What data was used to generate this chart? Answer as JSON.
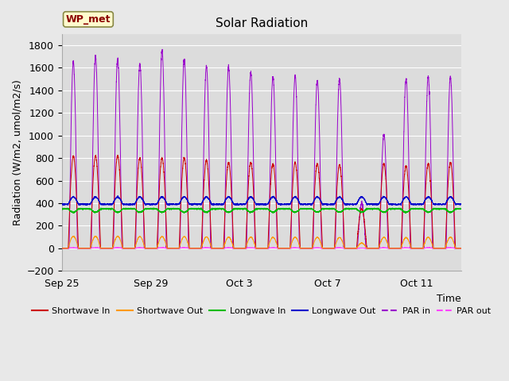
{
  "title": "Solar Radiation",
  "ylabel": "Radiation (W/m2, umol/m2/s)",
  "xlabel": "Time",
  "ylim": [
    -200,
    1900
  ],
  "yticks": [
    -200,
    0,
    200,
    400,
    600,
    800,
    1000,
    1200,
    1400,
    1600,
    1800
  ],
  "fig_bg_color": "#e8e8e8",
  "plot_bg_color": "#dcdcdc",
  "legend_label": "WP_met",
  "series": {
    "shortwave_in": {
      "label": "Shortwave In",
      "color": "#cc0000"
    },
    "shortwave_out": {
      "label": "Shortwave Out",
      "color": "#ff9900"
    },
    "longwave_in": {
      "label": "Longwave In",
      "color": "#00bb00"
    },
    "longwave_out": {
      "label": "Longwave Out",
      "color": "#0000cc"
    },
    "par_in": {
      "label": "PAR in",
      "color": "#9900cc"
    },
    "par_out": {
      "label": "PAR out",
      "color": "#ff44ff"
    }
  },
  "x_tick_positions": [
    0,
    4,
    8,
    12,
    16
  ],
  "x_tick_labels": [
    "Sep 25",
    "Sep 29",
    "Oct 3",
    "Oct 7",
    "Oct 11"
  ],
  "days": 18,
  "pts_per_day": 288,
  "title_fontsize": 11,
  "axis_label_fontsize": 9,
  "tick_fontsize": 9,
  "legend_fontsize": 8,
  "day_peaks_sw": [
    820,
    820,
    820,
    800,
    800,
    800,
    780,
    760,
    760,
    750,
    760,
    750,
    740,
    350,
    750,
    730,
    750,
    760
  ],
  "day_peaks_par": [
    1650,
    1700,
    1680,
    1640,
    1750,
    1680,
    1615,
    1610,
    1560,
    1520,
    1530,
    1490,
    1500,
    400,
    1010,
    1500,
    1520,
    1520
  ]
}
